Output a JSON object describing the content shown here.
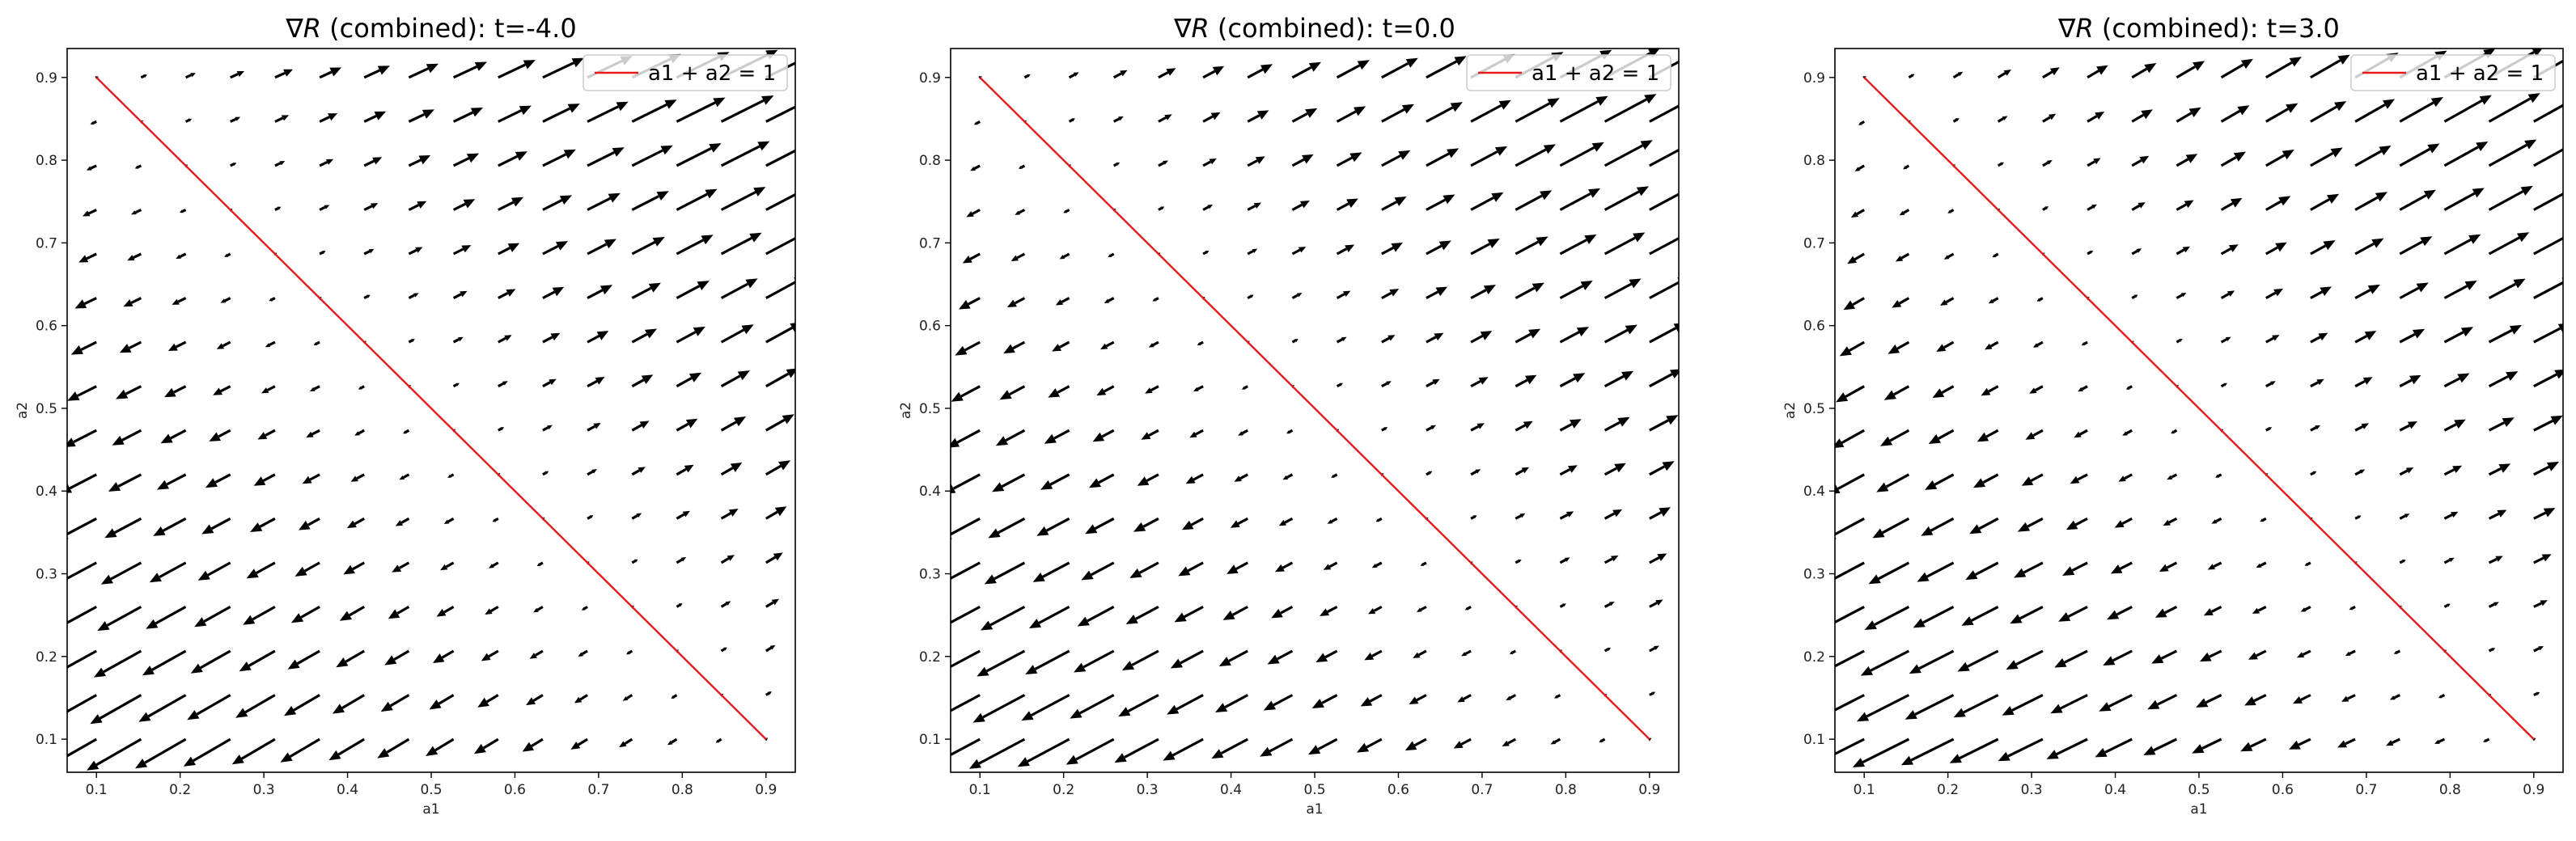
{
  "chart_data": [
    {
      "type": "quiver",
      "title": "∇R (combined): t=-4.0",
      "title_symbol": "∇",
      "title_var": "R",
      "title_rest": " (combined): t=-4.0",
      "t": -4.0,
      "xlabel": "a1",
      "ylabel": "a2",
      "xlim": [
        0.065,
        0.935
      ],
      "ylim": [
        0.06,
        0.935
      ],
      "xticks": [
        0.1,
        0.2,
        0.3,
        0.4,
        0.5,
        0.6,
        0.7,
        0.8,
        0.9
      ],
      "yticks": [
        0.1,
        0.2,
        0.3,
        0.4,
        0.5,
        0.6,
        0.7,
        0.8,
        0.9
      ],
      "line": {
        "label": "a1 + a2 = 1",
        "x": [
          0.1,
          0.9
        ],
        "y": [
          0.9,
          0.1
        ],
        "color": "#e41a1c"
      },
      "legend": {
        "position": "top-right",
        "entries": [
          "a1 + a2 = 1"
        ]
      },
      "grid": false
    },
    {
      "type": "quiver",
      "title": "∇R (combined): t=0.0",
      "title_symbol": "∇",
      "title_var": "R",
      "title_rest": " (combined): t=0.0",
      "t": 0.0,
      "xlabel": "a1",
      "ylabel": "a2",
      "xlim": [
        0.065,
        0.935
      ],
      "ylim": [
        0.06,
        0.935
      ],
      "xticks": [
        0.1,
        0.2,
        0.3,
        0.4,
        0.5,
        0.6,
        0.7,
        0.8,
        0.9
      ],
      "yticks": [
        0.1,
        0.2,
        0.3,
        0.4,
        0.5,
        0.6,
        0.7,
        0.8,
        0.9
      ],
      "line": {
        "label": "a1 + a2 = 1",
        "x": [
          0.1,
          0.9
        ],
        "y": [
          0.9,
          0.1
        ],
        "color": "#e41a1c"
      },
      "legend": {
        "position": "top-right",
        "entries": [
          "a1 + a2 = 1"
        ]
      },
      "grid": false
    },
    {
      "type": "quiver",
      "title": "∇R (combined): t=3.0",
      "title_symbol": "∇",
      "title_var": "R",
      "title_rest": " (combined): t=3.0",
      "t": 3.0,
      "xlabel": "a1",
      "ylabel": "a2",
      "xlim": [
        0.065,
        0.935
      ],
      "ylim": [
        0.06,
        0.935
      ],
      "xticks": [
        0.1,
        0.2,
        0.3,
        0.4,
        0.5,
        0.6,
        0.7,
        0.8,
        0.9
      ],
      "yticks": [
        0.1,
        0.2,
        0.3,
        0.4,
        0.5,
        0.6,
        0.7,
        0.8,
        0.9
      ],
      "line": {
        "label": "a1 + a2 = 1",
        "x": [
          0.1,
          0.9
        ],
        "y": [
          0.9,
          0.1
        ],
        "color": "#e41a1c"
      },
      "legend": {
        "position": "top-right",
        "entries": [
          "a1 + a2 = 1"
        ]
      },
      "grid": false
    }
  ],
  "quiver_grid": {
    "start": 0.1,
    "stop": 0.9,
    "n": 16
  },
  "colors": {
    "arrow": "#000000",
    "axis": "#000000",
    "legend_border": "#cccccc"
  }
}
